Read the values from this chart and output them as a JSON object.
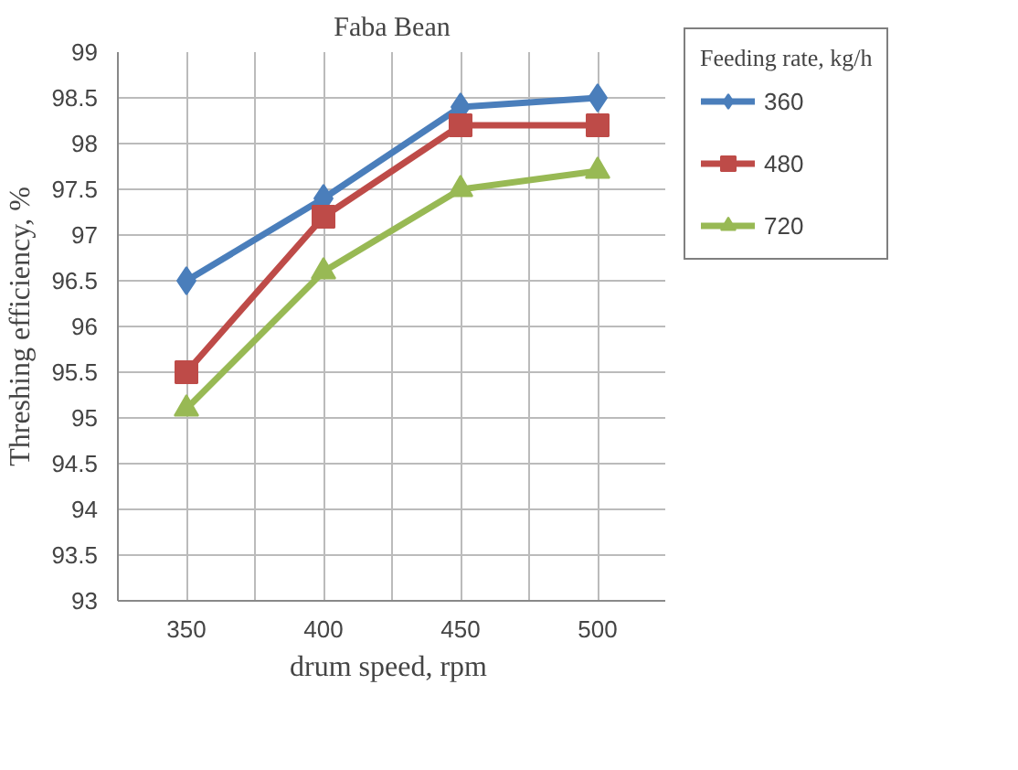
{
  "chart_data": {
    "type": "line",
    "title": "Faba Bean",
    "xlabel": "drum speed,  rpm",
    "ylabel": "Threshing efficiency, %",
    "legend_title": "Feeding rate, kg/h",
    "categories": [
      "350",
      "400",
      "450",
      "500"
    ],
    "series": [
      {
        "name": "360",
        "color": "#4a7ebb",
        "marker": "diamond",
        "values": [
          96.5,
          97.4,
          98.4,
          98.5
        ]
      },
      {
        "name": "480",
        "color": "#be4b48",
        "marker": "square",
        "values": [
          95.5,
          97.2,
          98.2,
          98.2
        ]
      },
      {
        "name": "720",
        "color": "#98b954",
        "marker": "triangle",
        "values": [
          95.1,
          96.6,
          97.5,
          97.7
        ]
      }
    ],
    "ylim": [
      93,
      99
    ],
    "yticks": [
      93,
      93.5,
      94,
      94.5,
      95,
      95.5,
      96,
      96.5,
      97,
      97.5,
      98,
      98.5,
      99
    ],
    "grid": true,
    "legend": "right"
  }
}
